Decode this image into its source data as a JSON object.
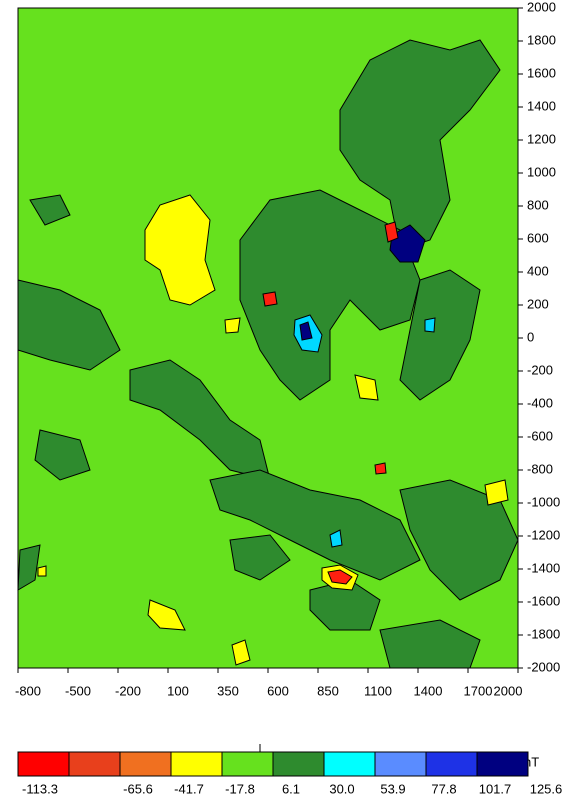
{
  "chart_data": {
    "type": "contour",
    "ylim": [
      -2000,
      2000
    ],
    "yticks": [
      2000,
      1800,
      1600,
      1400,
      1200,
      1000,
      800,
      600,
      400,
      200,
      0,
      -200,
      -400,
      -600,
      -800,
      -1000,
      -1200,
      -1400,
      -1600,
      -1800,
      -2000
    ],
    "xticks": [
      -800,
      -500,
      -200,
      100,
      350,
      600,
      850,
      1100,
      1400,
      1700,
      2000
    ],
    "colorbar": {
      "unit": "nT",
      "levels": [
        -113.3,
        null,
        -65.6,
        -41.7,
        -17.8,
        6.1,
        {
          "value": 30,
          "label": "30.0"
        },
        53.9,
        77.8,
        101.7,
        125.6
      ],
      "colors": [
        "#ff0000",
        "#e8401c",
        "#f07020",
        "#ffff00",
        "#66e11e",
        "#2e8b2e",
        "#00ffff",
        "#5a8cff",
        "#1e32e6",
        "#000080"
      ]
    }
  }
}
